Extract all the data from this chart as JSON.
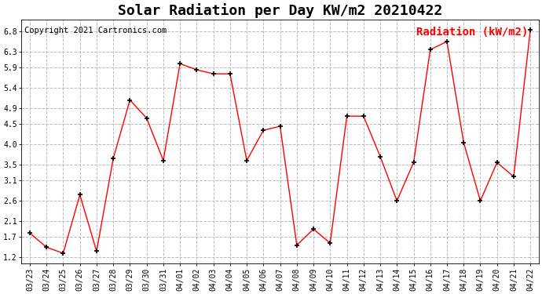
{
  "title": "Solar Radiation per Day KW/m2 20210422",
  "copyright_text": "Copyright 2021 Cartronics.com",
  "legend_label": "Radiation (kW/m2)",
  "x_labels": [
    "03/23",
    "03/24",
    "03/25",
    "03/26",
    "03/27",
    "03/28",
    "03/29",
    "03/30",
    "03/31",
    "04/01",
    "04/02",
    "04/03",
    "04/04",
    "04/05",
    "04/06",
    "04/07",
    "04/08",
    "04/09",
    "04/10",
    "04/11",
    "04/12",
    "04/13",
    "04/14",
    "04/15",
    "04/16",
    "04/17",
    "04/18",
    "04/19",
    "04/20",
    "04/21",
    "04/22"
  ],
  "y_values": [
    1.8,
    1.45,
    1.3,
    2.75,
    1.35,
    3.65,
    5.1,
    4.65,
    3.6,
    6.0,
    5.85,
    5.75,
    5.75,
    3.6,
    4.35,
    4.45,
    1.5,
    1.9,
    1.55,
    4.7,
    4.7,
    3.7,
    2.6,
    3.55,
    6.35,
    6.55,
    4.05,
    2.6,
    3.55,
    3.2,
    6.85
  ],
  "y_ticks": [
    1.2,
    1.7,
    2.1,
    2.6,
    3.1,
    3.5,
    4.0,
    4.5,
    4.9,
    5.4,
    5.9,
    6.3,
    6.8
  ],
  "ylim": [
    1.05,
    7.1
  ],
  "line_color": "red",
  "marker": "+",
  "marker_size": 5,
  "marker_linewidth": 1.2,
  "line_width": 1.0,
  "grid_color": "#bbbbbb",
  "grid_style": "--",
  "background_color": "#ffffff",
  "title_fontsize": 13,
  "tick_fontsize": 7,
  "legend_fontsize": 10,
  "copyright_fontsize": 7.5
}
